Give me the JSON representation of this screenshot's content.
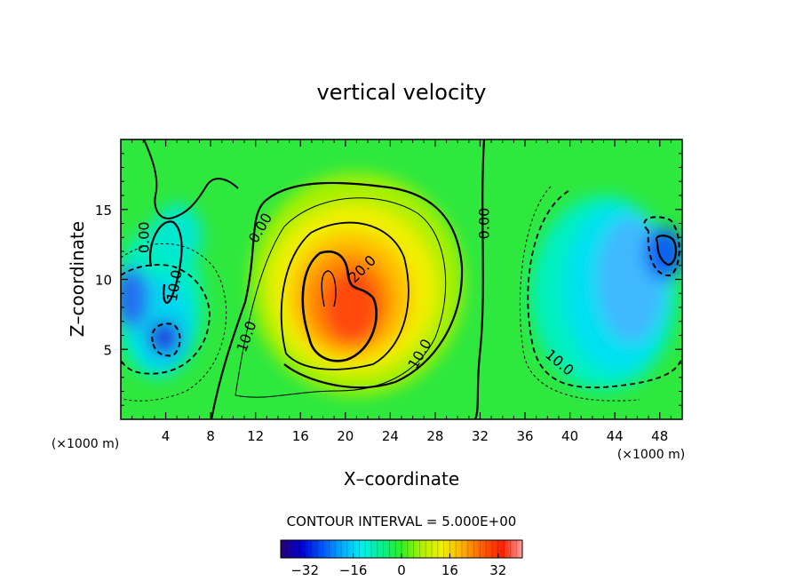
{
  "chart_data": {
    "type": "heatmap",
    "title": "vertical velocity",
    "xlabel": "X–coordinate",
    "ylabel": "Z–coordinate",
    "x_unit": "(×1000 m)",
    "y_unit": "(×1000 m)",
    "xlim": [
      0,
      50
    ],
    "ylim": [
      0,
      20
    ],
    "x_ticks": [
      4,
      8,
      12,
      16,
      20,
      24,
      28,
      32,
      36,
      40,
      44,
      48
    ],
    "y_ticks": [
      5,
      10,
      15
    ],
    "contour_interval_label": "CONTOUR INTERVAL = 5.000E+00",
    "contour_labels": [
      {
        "text": "0.00",
        "x": 2.5,
        "y": 13.0
      },
      {
        "text": "0.00",
        "x": 12.8,
        "y": 13.5
      },
      {
        "text": "0.00",
        "x": 32.8,
        "y": 14.0
      },
      {
        "text": "10.0",
        "x": 5.2,
        "y": 9.5
      },
      {
        "text": "10.0",
        "x": 11.6,
        "y": 5.8
      },
      {
        "text": "20.0",
        "x": 21.8,
        "y": 10.5
      },
      {
        "text": "10.0",
        "x": 27.0,
        "y": 4.5
      },
      {
        "text": "10.0",
        "x": 38.8,
        "y": 3.8
      }
    ],
    "colorbar": {
      "range": [
        -40,
        40
      ],
      "ticks": [
        -32,
        -16,
        0,
        16,
        32
      ],
      "tick_labels": [
        "−32",
        "−16",
        "0",
        "16",
        "32"
      ],
      "colors": [
        "#2a0070",
        "#0000d0",
        "#0050ff",
        "#00a8ff",
        "#00f0f0",
        "#00f090",
        "#30f020",
        "#b0f000",
        "#f0f000",
        "#ffb000",
        "#ff6000",
        "#ff2000",
        "#ffa0a0"
      ]
    },
    "features": [
      {
        "name": "updraft-core",
        "center": [
          20.5,
          8.5
        ],
        "peak": 30
      },
      {
        "name": "downdraft-right",
        "center": [
          46.5,
          9.0
        ],
        "peak": -22
      },
      {
        "name": "downdraft-left",
        "center": [
          3.5,
          6.0
        ],
        "peak": -25
      }
    ]
  }
}
